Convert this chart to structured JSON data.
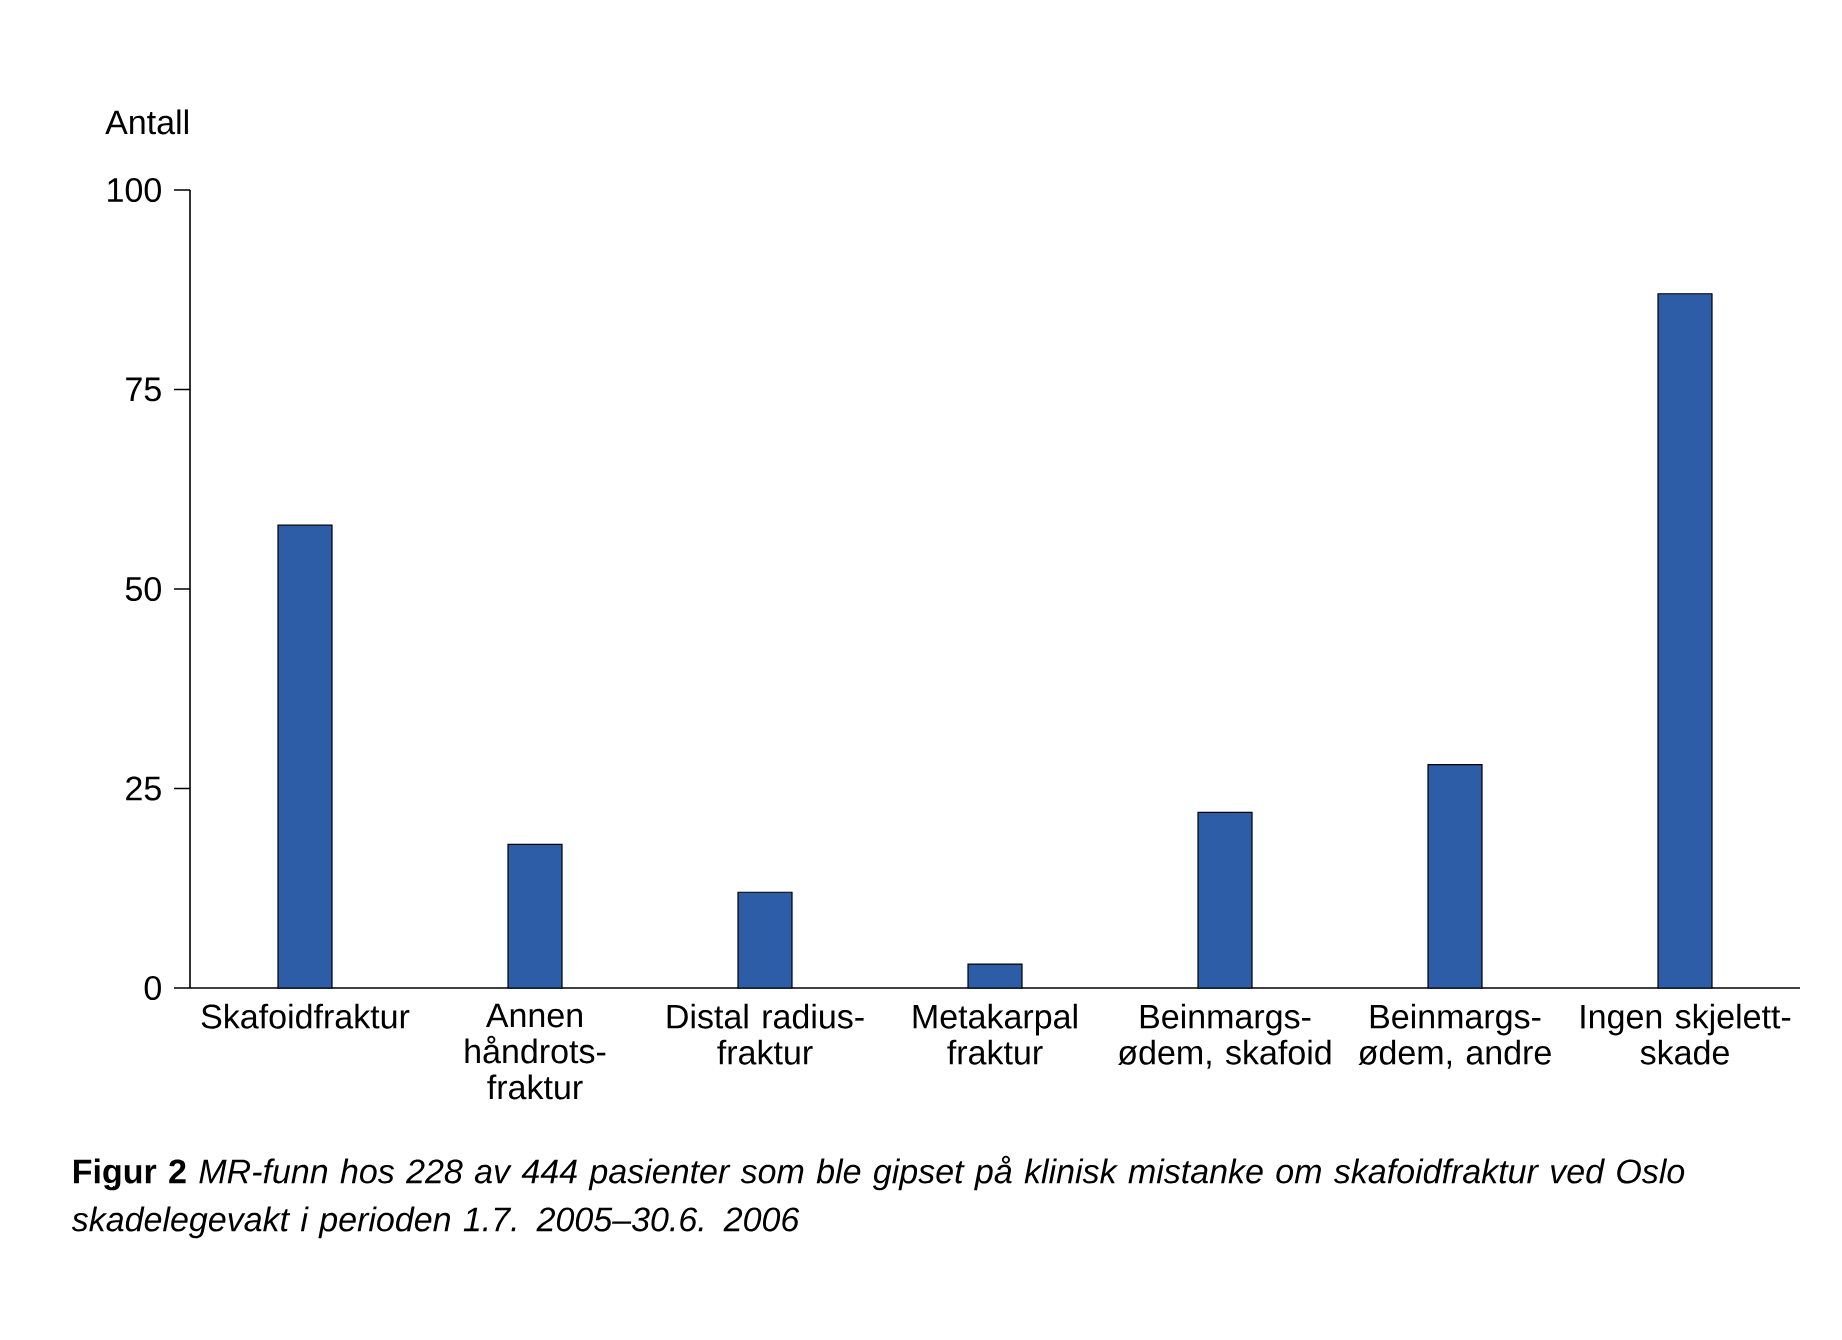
{
  "chart_data": {
    "type": "bar",
    "ylabel": "Antall",
    "categories": [
      "Skafoidfraktur",
      "Annen håndrots-fraktur",
      "Distal radius-fraktur",
      "Metakarpal fraktur",
      "Beinmargs-ødem, skafoid",
      "Beinmargs-ødem, andre",
      "Ingen skjelett-skade"
    ],
    "values": [
      58,
      18,
      12,
      3,
      22,
      28,
      87
    ],
    "color": "#2e5da8",
    "ylim": [
      0,
      100
    ],
    "yticks": [
      0,
      25,
      50,
      75,
      100
    ],
    "annotations": [
      "**Figur 2** *MR-funn hos 228 av 444 pasienter som ble gipset på klinisk mistanke om skafoidfraktur ved Oslo skadelegevakt i perioden 1.7. 2005–30.6. 2006*"
    ]
  }
}
